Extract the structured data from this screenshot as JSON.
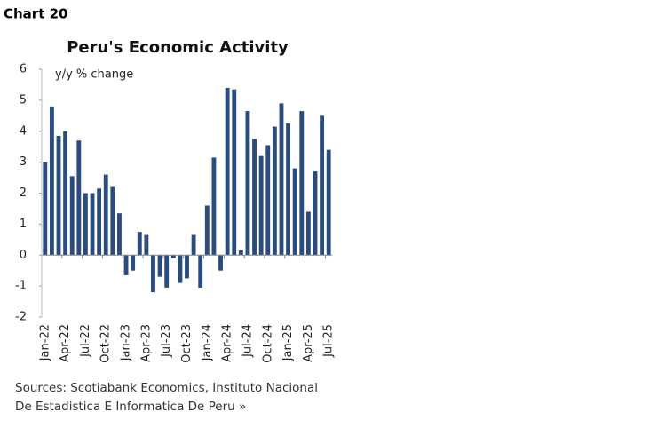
{
  "chart_data": {
    "type": "bar",
    "chart_label": "Chart 20",
    "title": "Peru's Economic Activity",
    "y_label": "y/y % change",
    "source": [
      "Sources: Scotiabank Economics, Instituto Nacional",
      "De Estadistica E Informatica De Peru »"
    ],
    "categories": [
      "Jan-22",
      null,
      null,
      "Apr-22",
      null,
      null,
      "Jul-22",
      null,
      null,
      "Oct-22",
      null,
      null,
      "Jan-23",
      null,
      null,
      "Apr-23",
      null,
      null,
      "Jul-23",
      null,
      null,
      "Oct-23",
      null,
      null,
      "Jan-24",
      null,
      null,
      "Apr-24",
      null,
      null,
      "Jul-24",
      null,
      null,
      "Oct-24",
      null,
      null,
      "Jan-25",
      null,
      null,
      "Apr-25",
      null,
      null,
      "Jul-25"
    ],
    "values": [
      3.0,
      4.8,
      3.85,
      4.0,
      2.55,
      3.7,
      2.0,
      2.0,
      2.15,
      2.6,
      2.2,
      1.35,
      -0.65,
      -0.5,
      0.75,
      0.65,
      -1.2,
      -0.7,
      -1.05,
      -0.1,
      -0.9,
      -0.75,
      0.65,
      -1.05,
      1.6,
      3.15,
      -0.5,
      5.4,
      5.35,
      0.15,
      4.65,
      3.75,
      3.2,
      3.55,
      4.15,
      4.9,
      4.25,
      2.8,
      4.65,
      1.4,
      2.7,
      4.5,
      3.4
    ],
    "color": "#2b4d7e",
    "ylim": [
      -2,
      6
    ],
    "yticks": [
      -2,
      -1,
      0,
      1,
      2,
      3,
      4,
      5,
      6
    ],
    "grid": false
  }
}
